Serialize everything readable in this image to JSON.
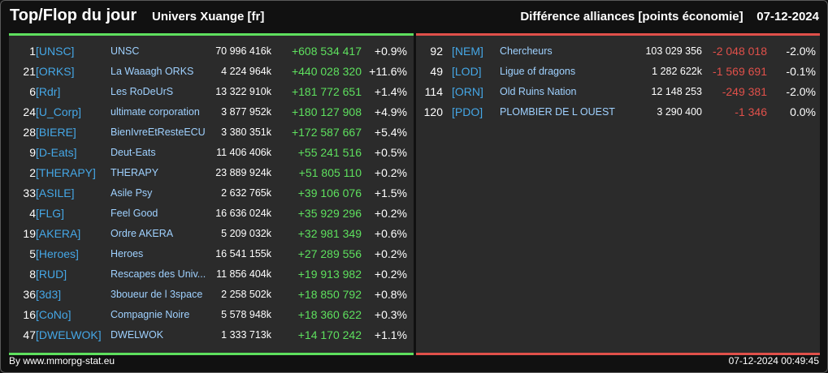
{
  "header": {
    "title": "Top/Flop du jour",
    "server": "Univers Xuange [fr]",
    "ranking": "Différence alliances [points économie]",
    "date": "07-12-2024"
  },
  "colors": {
    "gain": "#5ee05e",
    "loss": "#e0504a",
    "tag": "#45a7e6",
    "name": "#9fd1ff",
    "panel": "#2b2b2b"
  },
  "top": [
    {
      "rank": "1",
      "tag": "[UNSC]",
      "name": "UNSC",
      "points": "70 996 416k",
      "diff": "+608 534 417",
      "pct": "+0.9%"
    },
    {
      "rank": "21",
      "tag": "[ORKS]",
      "name": "La Waaagh ORKS",
      "points": "4 224 964k",
      "diff": "+440 028 320",
      "pct": "+11.6%"
    },
    {
      "rank": "6",
      "tag": "[Rdr]",
      "name": "Les RoDeUrS",
      "points": "13 322 910k",
      "diff": "+181 772 651",
      "pct": "+1.4%"
    },
    {
      "rank": "24",
      "tag": "[U_Corp]",
      "name": "ultimate corporation",
      "points": "3 877 952k",
      "diff": "+180 127 908",
      "pct": "+4.9%"
    },
    {
      "rank": "28",
      "tag": "[BIERE]",
      "name": "BienIvreEtResteECU",
      "points": "3 380 351k",
      "diff": "+172 587 667",
      "pct": "+5.4%"
    },
    {
      "rank": "9",
      "tag": "[D-Eats]",
      "name": "Deut-Eats",
      "points": "11 406 406k",
      "diff": "+55 241 516",
      "pct": "+0.5%"
    },
    {
      "rank": "2",
      "tag": "[THERAPY]",
      "name": "THERAPY",
      "points": "23 889 924k",
      "diff": "+51 805 110",
      "pct": "+0.2%"
    },
    {
      "rank": "33",
      "tag": "[ASILE]",
      "name": "Asile Psy",
      "points": "2 632 765k",
      "diff": "+39 106 076",
      "pct": "+1.5%"
    },
    {
      "rank": "4",
      "tag": "[FLG]",
      "name": "Feel Good",
      "points": "16 636 024k",
      "diff": "+35 929 296",
      "pct": "+0.2%"
    },
    {
      "rank": "19",
      "tag": "[AKERA]",
      "name": "Ordre AKERA",
      "points": "5 209 032k",
      "diff": "+32 981 349",
      "pct": "+0.6%"
    },
    {
      "rank": "5",
      "tag": "[Heroes]",
      "name": "Heroes",
      "points": "16 541 155k",
      "diff": "+27 289 556",
      "pct": "+0.2%"
    },
    {
      "rank": "8",
      "tag": "[RUD]",
      "name": "Rescapes des Univ...",
      "points": "11 856 404k",
      "diff": "+19 913 982",
      "pct": "+0.2%"
    },
    {
      "rank": "36",
      "tag": "[3d3]",
      "name": "3boueur de l 3space",
      "points": "2 258 502k",
      "diff": "+18 850 792",
      "pct": "+0.8%"
    },
    {
      "rank": "16",
      "tag": "[CoNo]",
      "name": "Compagnie Noire",
      "points": "5 578 948k",
      "diff": "+18 360 622",
      "pct": "+0.3%"
    },
    {
      "rank": "47",
      "tag": "[DWELWOK]",
      "name": "DWELWOK",
      "points": "1 333 713k",
      "diff": "+14 170 242",
      "pct": "+1.1%"
    }
  ],
  "flop": [
    {
      "rank": "92",
      "tag": "[NEM]",
      "name": "Chercheurs",
      "points": "103 029 356",
      "diff": "-2 048 018",
      "pct": "-2.0%"
    },
    {
      "rank": "49",
      "tag": "[LOD]",
      "name": "Ligue of dragons",
      "points": "1 282 622k",
      "diff": "-1 569 691",
      "pct": "-0.1%"
    },
    {
      "rank": "114",
      "tag": "[ORN]",
      "name": "Old Ruins Nation",
      "points": "12 148 253",
      "diff": "-249 381",
      "pct": "-2.0%"
    },
    {
      "rank": "120",
      "tag": "[PDO]",
      "name": "PLOMBIER DE L OUEST",
      "points": "3 290 400",
      "diff": "-1 346",
      "pct": "0.0%"
    }
  ],
  "footer": {
    "credit": "By www.mmorpg-stat.eu",
    "timestamp": "07-12-2024 00:49:45"
  }
}
